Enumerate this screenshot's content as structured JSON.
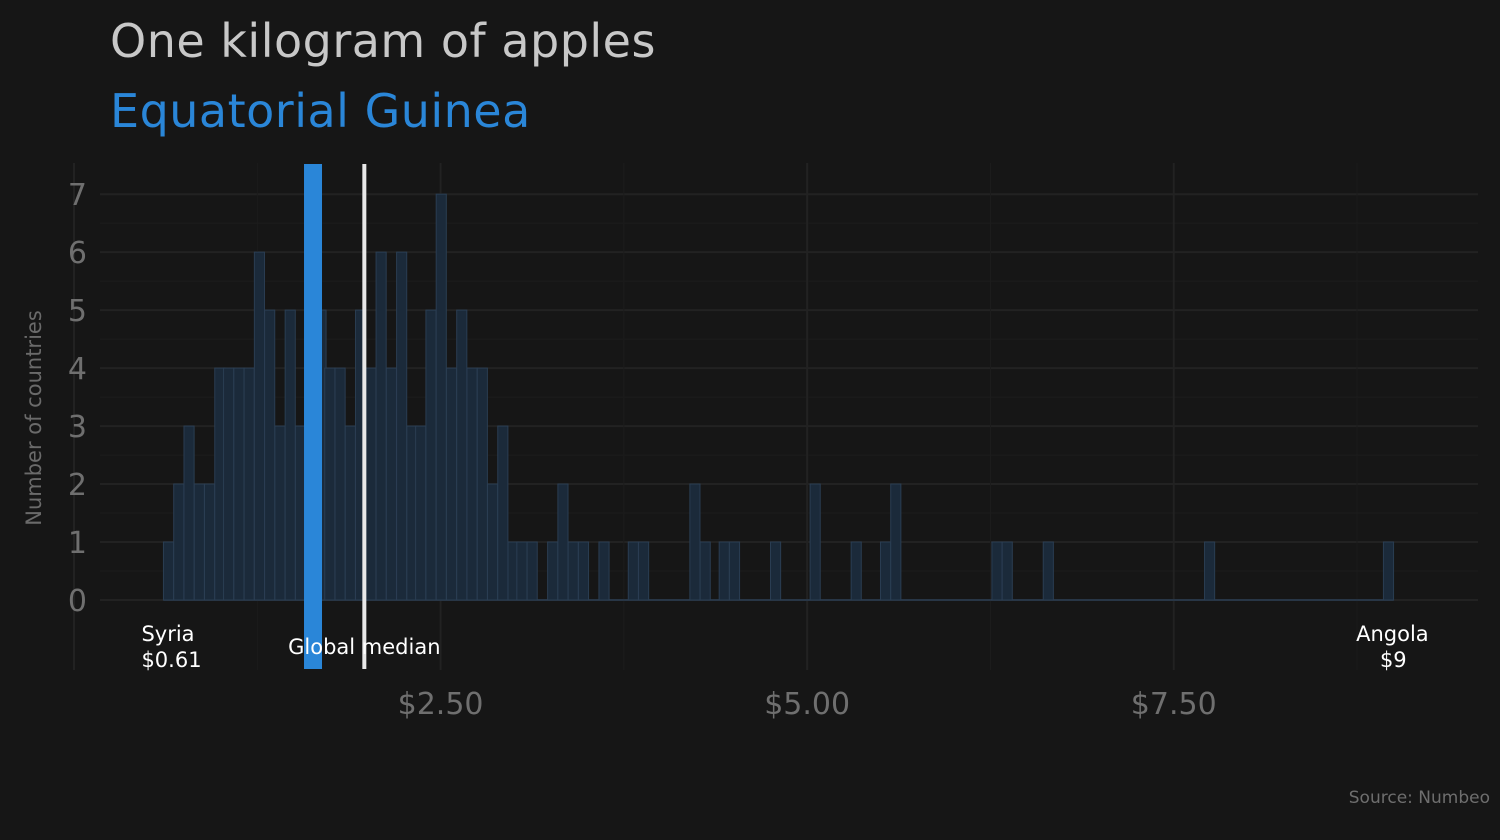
{
  "title": "One kilogram of apples",
  "subtitle": "Equatorial Guinea",
  "source": "Source: Numbeo",
  "colors": {
    "background": "#161616",
    "bars_fill": "#1b2a3a",
    "bars_stroke": "#2a3d52",
    "highlight": "#2a86d8",
    "median_line": "#e8e8e8",
    "grid": "#222222"
  },
  "chart_data": {
    "type": "bar",
    "subtype": "histogram",
    "title": "One kilogram of apples",
    "subtitle": "Equatorial Guinea",
    "ylabel": "Number of countries",
    "xlabel": "",
    "xlim": [
      0,
      9.5
    ],
    "ylim": [
      0,
      7.4
    ],
    "bin_width": 0.0691,
    "x_ticks": [
      {
        "value": 2.5,
        "label": "$2.50"
      },
      {
        "value": 5.0,
        "label": "$5.00"
      },
      {
        "value": 7.5,
        "label": "$7.50"
      }
    ],
    "y_ticks": [
      0,
      1,
      2,
      3,
      4,
      5,
      6,
      7
    ],
    "bins": [
      {
        "x": 0.61,
        "count": 1
      },
      {
        "x": 0.68,
        "count": 2
      },
      {
        "x": 0.75,
        "count": 3
      },
      {
        "x": 0.82,
        "count": 2
      },
      {
        "x": 0.89,
        "count": 2
      },
      {
        "x": 0.96,
        "count": 4
      },
      {
        "x": 1.02,
        "count": 4
      },
      {
        "x": 1.09,
        "count": 4
      },
      {
        "x": 1.16,
        "count": 4
      },
      {
        "x": 1.23,
        "count": 6
      },
      {
        "x": 1.3,
        "count": 5
      },
      {
        "x": 1.37,
        "count": 3
      },
      {
        "x": 1.44,
        "count": 5
      },
      {
        "x": 1.51,
        "count": 3
      },
      {
        "x": 1.58,
        "count": 3
      },
      {
        "x": 1.65,
        "count": 5
      },
      {
        "x": 1.71,
        "count": 4
      },
      {
        "x": 1.78,
        "count": 4
      },
      {
        "x": 1.85,
        "count": 3
      },
      {
        "x": 1.92,
        "count": 5
      },
      {
        "x": 1.99,
        "count": 4
      },
      {
        "x": 2.06,
        "count": 6
      },
      {
        "x": 2.13,
        "count": 4
      },
      {
        "x": 2.2,
        "count": 6
      },
      {
        "x": 2.27,
        "count": 3
      },
      {
        "x": 2.33,
        "count": 3
      },
      {
        "x": 2.4,
        "count": 5
      },
      {
        "x": 2.47,
        "count": 7
      },
      {
        "x": 2.54,
        "count": 4
      },
      {
        "x": 2.61,
        "count": 5
      },
      {
        "x": 2.68,
        "count": 4
      },
      {
        "x": 2.75,
        "count": 4
      },
      {
        "x": 2.82,
        "count": 2
      },
      {
        "x": 2.89,
        "count": 3
      },
      {
        "x": 2.96,
        "count": 1
      },
      {
        "x": 3.02,
        "count": 1
      },
      {
        "x": 3.09,
        "count": 1
      },
      {
        "x": 3.23,
        "count": 1
      },
      {
        "x": 3.3,
        "count": 2
      },
      {
        "x": 3.37,
        "count": 1
      },
      {
        "x": 3.44,
        "count": 1
      },
      {
        "x": 3.58,
        "count": 1
      },
      {
        "x": 3.78,
        "count": 1
      },
      {
        "x": 3.85,
        "count": 1
      },
      {
        "x": 4.2,
        "count": 2
      },
      {
        "x": 4.27,
        "count": 1
      },
      {
        "x": 4.4,
        "count": 1
      },
      {
        "x": 4.47,
        "count": 1
      },
      {
        "x": 4.75,
        "count": 1
      },
      {
        "x": 5.02,
        "count": 2
      },
      {
        "x": 5.3,
        "count": 1
      },
      {
        "x": 5.5,
        "count": 1
      },
      {
        "x": 5.57,
        "count": 2
      },
      {
        "x": 6.26,
        "count": 1
      },
      {
        "x": 6.33,
        "count": 1
      },
      {
        "x": 6.61,
        "count": 1
      },
      {
        "x": 7.71,
        "count": 1
      },
      {
        "x": 8.93,
        "count": 1
      }
    ],
    "highlight": {
      "name": "Equatorial Guinea",
      "value": 1.63
    },
    "median": {
      "label": "Global median",
      "value": 1.98
    },
    "annotations": [
      {
        "name": "Syria",
        "value": 0.61,
        "label": "$0.61",
        "align": "left"
      },
      {
        "name": "Angola",
        "value": 9.0,
        "label": "$9",
        "align": "right"
      }
    ],
    "grid": true,
    "legend": "none"
  }
}
